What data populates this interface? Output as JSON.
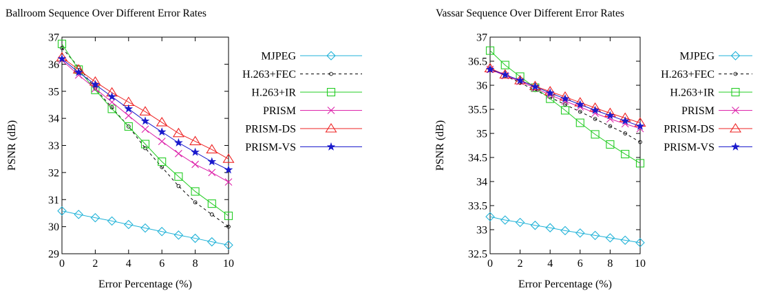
{
  "chart_data": [
    {
      "type": "line",
      "title": "Ballroom Sequence Over Different Error Rates",
      "xlabel": "Error Percentage (%)",
      "ylabel": "PSNR (dB)",
      "xlim": [
        0,
        10
      ],
      "ylim": [
        29,
        37
      ],
      "xticks": [
        0,
        2,
        4,
        6,
        8,
        10
      ],
      "yticks": [
        29,
        30,
        31,
        32,
        33,
        34,
        35,
        36,
        37
      ],
      "grid": false,
      "legend": "right",
      "x": [
        0,
        1,
        2,
        3,
        4,
        5,
        6,
        7,
        8,
        9,
        10
      ],
      "series": [
        {
          "name": "MJPEG",
          "values": [
            30.58,
            30.45,
            30.33,
            30.21,
            30.08,
            29.95,
            29.82,
            29.69,
            29.57,
            29.44,
            29.32
          ]
        },
        {
          "name": "H.263+FEC",
          "values": [
            36.6,
            35.9,
            35.1,
            34.4,
            33.7,
            32.9,
            32.2,
            31.5,
            30.9,
            30.45,
            30.0
          ]
        },
        {
          "name": "H.263+IR",
          "values": [
            36.75,
            35.8,
            35.05,
            34.35,
            33.7,
            33.05,
            32.4,
            31.85,
            31.3,
            30.85,
            30.4
          ]
        },
        {
          "name": "PRISM",
          "values": [
            36.15,
            35.6,
            35.1,
            34.6,
            34.1,
            33.6,
            33.15,
            32.7,
            32.3,
            32.0,
            31.65
          ]
        },
        {
          "name": "PRISM-DS",
          "values": [
            36.25,
            35.8,
            35.35,
            34.95,
            34.6,
            34.25,
            33.85,
            33.45,
            33.15,
            32.85,
            32.5
          ]
        },
        {
          "name": "PRISM-VS",
          "values": [
            36.2,
            35.7,
            35.25,
            34.8,
            34.35,
            33.9,
            33.5,
            33.1,
            32.75,
            32.4,
            32.1
          ]
        }
      ]
    },
    {
      "type": "line",
      "title": "Vassar Sequence Over Different Error Rates",
      "xlabel": "Error Percentage (%)",
      "ylabel": "PSNR (dB)",
      "xlim": [
        0,
        10
      ],
      "ylim": [
        32.5,
        37
      ],
      "xticks": [
        0,
        2,
        4,
        6,
        8,
        10
      ],
      "yticks": [
        32.5,
        33,
        33.5,
        34,
        34.5,
        35,
        35.5,
        36,
        36.5,
        37
      ],
      "grid": false,
      "legend": "right",
      "x": [
        0,
        1,
        2,
        3,
        4,
        5,
        6,
        7,
        8,
        9,
        10
      ],
      "series": [
        {
          "name": "MJPEG",
          "values": [
            33.27,
            33.2,
            33.15,
            33.09,
            33.04,
            32.98,
            32.93,
            32.88,
            32.83,
            32.78,
            32.73
          ]
        },
        {
          "name": "H.263+FEC",
          "values": [
            36.35,
            36.2,
            36.05,
            35.9,
            35.75,
            35.6,
            35.45,
            35.3,
            35.15,
            35.0,
            34.82
          ]
        },
        {
          "name": "H.263+IR",
          "values": [
            36.72,
            36.42,
            36.18,
            35.95,
            35.72,
            35.48,
            35.22,
            34.98,
            34.77,
            34.57,
            34.38
          ]
        },
        {
          "name": "PRISM",
          "values": [
            36.33,
            36.2,
            36.08,
            35.94,
            35.8,
            35.67,
            35.55,
            35.42,
            35.3,
            35.2,
            35.1
          ]
        },
        {
          "name": "PRISM-DS",
          "values": [
            36.35,
            36.22,
            36.1,
            35.98,
            35.87,
            35.76,
            35.64,
            35.53,
            35.42,
            35.32,
            35.22
          ]
        },
        {
          "name": "PRISM-VS",
          "values": [
            36.33,
            36.22,
            36.1,
            35.97,
            35.84,
            35.72,
            35.6,
            35.48,
            35.37,
            35.26,
            35.15
          ]
        }
      ]
    }
  ],
  "styles": {
    "MJPEG": {
      "color": "#1fb2d8",
      "marker": "diamond"
    },
    "H.263+FEC": {
      "color": "#000000",
      "marker": "circle",
      "dash": "4,4"
    },
    "H.263+IR": {
      "color": "#22cc22",
      "marker": "square"
    },
    "PRISM": {
      "color": "#dd22aa",
      "marker": "cross"
    },
    "PRISM-DS": {
      "color": "#ee2222",
      "marker": "triangle"
    },
    "PRISM-VS": {
      "color": "#1a1acc",
      "marker": "star"
    }
  }
}
